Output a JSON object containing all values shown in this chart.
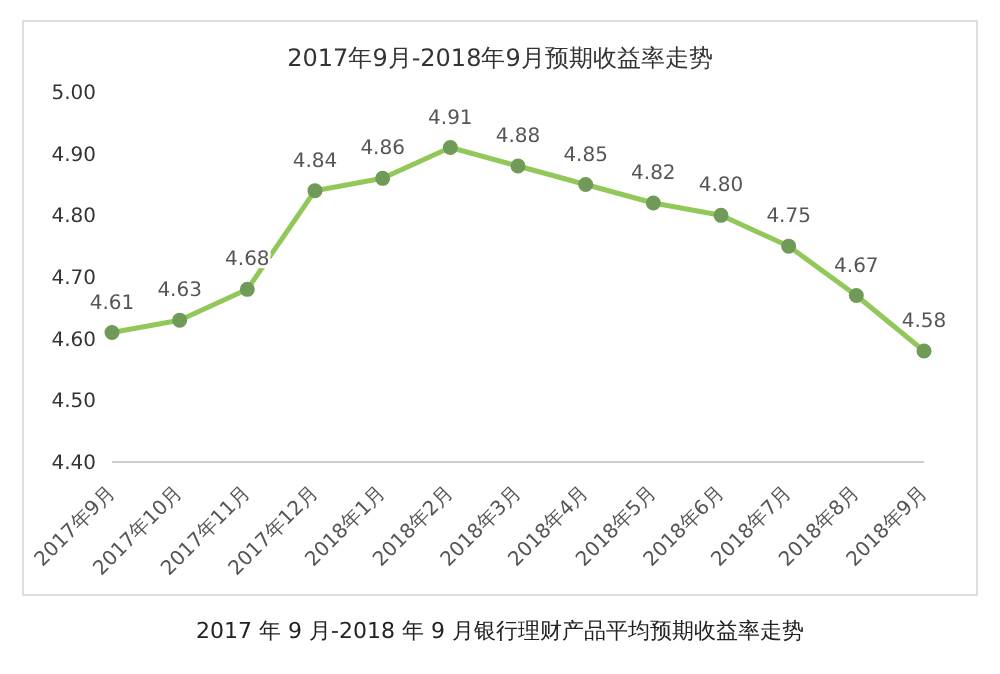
{
  "chart_data": {
    "type": "line",
    "title": "2017年9月-2018年9月预期收益率走势",
    "categories": [
      "2017年9月",
      "2017年10月",
      "2017年11月",
      "2017年12月",
      "2018年1月",
      "2018年2月",
      "2018年3月",
      "2018年4月",
      "2018年5月",
      "2018年6月",
      "2018年7月",
      "2018年8月",
      "2018年9月"
    ],
    "series": [
      {
        "color": "#92c85a",
        "values": [
          4.61,
          4.63,
          4.68,
          4.84,
          4.86,
          4.91,
          4.88,
          4.85,
          4.82,
          4.8,
          4.75,
          4.67,
          4.58
        ],
        "value_labels": [
          "4.61",
          "4.63",
          "4.68",
          "4.84",
          "4.86",
          "4.91",
          "4.88",
          "4.85",
          "4.82",
          "4.80",
          "4.75",
          "4.67",
          "4.58"
        ]
      }
    ],
    "ylim": [
      4.4,
      5.0
    ],
    "yticks": [
      {
        "value": 4.4,
        "label": "4.40"
      },
      {
        "value": 4.5,
        "label": "4.50"
      },
      {
        "value": 4.6,
        "label": "4.60"
      },
      {
        "value": 4.7,
        "label": "4.70"
      },
      {
        "value": 4.8,
        "label": "4.80"
      },
      {
        "value": 4.9,
        "label": "4.90"
      },
      {
        "value": 5.0,
        "label": "5.00"
      }
    ],
    "grid": false,
    "legend": false,
    "marker": "circle",
    "line_style": "solid",
    "annotations": [
      "2017 年 9 月-2018 年 9 月银行理财产品平均预期收益率走势"
    ]
  }
}
